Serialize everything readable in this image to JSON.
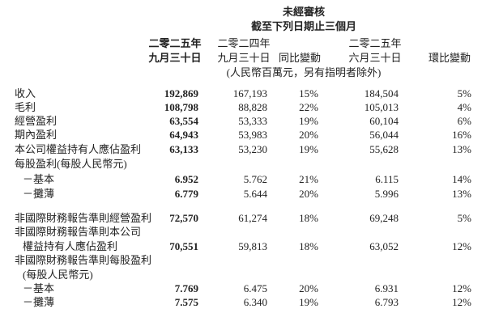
{
  "header": {
    "title": "未經審核",
    "subtitle": "截至下列日期止三個月",
    "columns": [
      {
        "line1": "二零二五年",
        "line2": "九月三十日"
      },
      {
        "line1": "二零二四年",
        "line2": "九月三十日"
      },
      {
        "line1": "",
        "line2": "同比變動"
      },
      {
        "line1": "二零二五年",
        "line2": "六月三十日"
      },
      {
        "line1": "",
        "line2": "環比變動"
      }
    ],
    "unit_note": "(人民幣百萬元，另有指明者除外)"
  },
  "rows": [
    {
      "label": "收入",
      "values": [
        "192,869",
        "167,193",
        "15%",
        "184,504",
        "5%"
      ]
    },
    {
      "label": "毛利",
      "values": [
        "108,798",
        "88,828",
        "22%",
        "105,013",
        "4%"
      ]
    },
    {
      "label": "經營盈利",
      "values": [
        "63,554",
        "53,333",
        "19%",
        "60,104",
        "6%"
      ]
    },
    {
      "label": "期內盈利",
      "values": [
        "64,943",
        "53,983",
        "20%",
        "56,044",
        "16%"
      ]
    },
    {
      "label": "本公司權益持有人應佔盈利",
      "values": [
        "63,133",
        "53,230",
        "19%",
        "55,628",
        "13%"
      ]
    },
    {
      "label": "每股盈利(每股人民幣元)",
      "values": [
        "",
        "",
        "",
        "",
        ""
      ]
    },
    {
      "label": "－基本",
      "values": [
        "6.952",
        "5.762",
        "21%",
        "6.115",
        "14%"
      ]
    },
    {
      "label": "－攤薄",
      "values": [
        "6.779",
        "5.644",
        "20%",
        "5.996",
        "13%"
      ]
    },
    {
      "label": "非國際財務報告準則經營盈利",
      "values": [
        "72,570",
        "61,274",
        "18%",
        "69,248",
        "5%"
      ]
    },
    {
      "label": "非國際財務報告準則本公司",
      "values": [
        "",
        "",
        "",
        "",
        ""
      ]
    },
    {
      "label": "權益持有人應佔盈利",
      "values": [
        "70,551",
        "59,813",
        "18%",
        "63,052",
        "12%"
      ]
    },
    {
      "label": "非國際財務報告準則每股盈利",
      "values": [
        "",
        "",
        "",
        "",
        ""
      ]
    },
    {
      "label": "(每股人民幣元)",
      "values": [
        "",
        "",
        "",
        "",
        ""
      ]
    },
    {
      "label": "－基本",
      "values": [
        "7.769",
        "6.475",
        "20%",
        "6.931",
        "12%"
      ]
    },
    {
      "label": "－攤薄",
      "values": [
        "7.575",
        "6.340",
        "19%",
        "6.793",
        "12%"
      ]
    }
  ]
}
